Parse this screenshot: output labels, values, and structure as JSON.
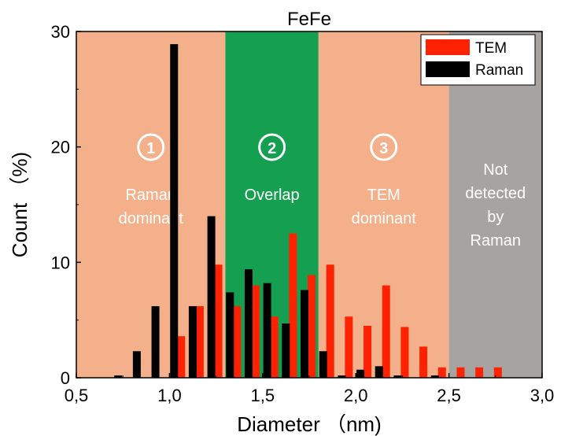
{
  "chart_data": {
    "type": "bar",
    "title": "FeFe",
    "xlabel": "Diameter （nm)",
    "ylabel": "Count （%)",
    "xlim": [
      0.5,
      3.0
    ],
    "ylim": [
      0,
      30
    ],
    "xticks": [
      "0,5",
      "1,0",
      "1,5",
      "2,0",
      "2,5",
      "3,0"
    ],
    "yticks": [
      "0",
      "10",
      "20",
      "30"
    ],
    "legend_position": "top-right",
    "series": [
      {
        "name": "TEM",
        "color": "#ff2200",
        "x": [
          1.05,
          1.15,
          1.25,
          1.35,
          1.45,
          1.55,
          1.65,
          1.75,
          1.85,
          1.95,
          2.05,
          2.15,
          2.25,
          2.35,
          2.45,
          2.55,
          2.65,
          2.75
        ],
        "values": [
          3.6,
          6.2,
          9.8,
          6.2,
          8.0,
          5.3,
          12.5,
          8.9,
          9.8,
          5.3,
          4.5,
          8.0,
          4.4,
          2.7,
          0.9,
          0.9,
          0.9,
          0.9
        ]
      },
      {
        "name": "Raman",
        "color": "#000000",
        "x": [
          0.75,
          0.85,
          0.95,
          1.05,
          1.15,
          1.25,
          1.35,
          1.45,
          1.55,
          1.65,
          1.75,
          1.85,
          1.95,
          2.05,
          2.15,
          2.25,
          2.35,
          2.45,
          2.55,
          2.65,
          2.75
        ],
        "values": [
          0.2,
          2.3,
          6.2,
          28.9,
          6.2,
          14.0,
          7.4,
          9.4,
          8.2,
          4.7,
          7.6,
          2.3,
          0.2,
          0.7,
          1.0,
          0.2,
          0.0,
          0.2,
          0.0,
          0.0,
          0.0
        ]
      }
    ],
    "regions": [
      {
        "id": "1",
        "label_lines": [
          "Raman",
          "dominant"
        ],
        "x_range": [
          0.5,
          1.3
        ],
        "color": "#f4b08a"
      },
      {
        "id": "2",
        "label_lines": [
          "Overlap"
        ],
        "x_range": [
          1.3,
          1.8
        ],
        "color": "#14a050"
      },
      {
        "id": "3",
        "label_lines": [
          "TEM",
          "dominant"
        ],
        "x_range": [
          1.8,
          2.5
        ],
        "color": "#f4b08a"
      },
      {
        "id": "",
        "label_lines": [
          "Not",
          "detected",
          "by",
          "Raman"
        ],
        "x_range": [
          2.5,
          3.0
        ],
        "color": "#a6a3a1"
      }
    ]
  }
}
